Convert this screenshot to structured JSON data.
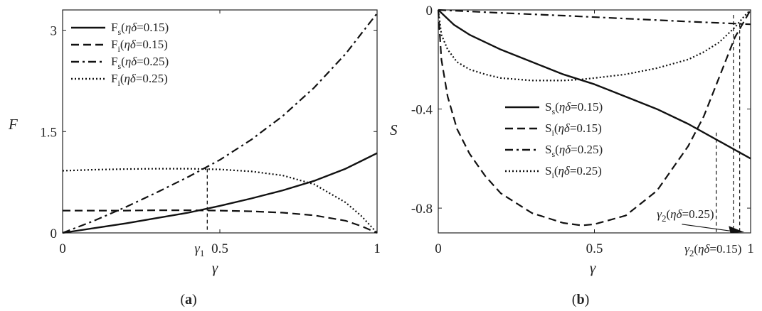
{
  "chart_data": [
    {
      "type": "line",
      "panel_label": "(a)",
      "panel_letter": "a",
      "xlabel": "γ",
      "ylabel": "F",
      "xlim": [
        0,
        1
      ],
      "ylim": [
        0,
        3.3
      ],
      "xticks": [
        0,
        0.5,
        1
      ],
      "xtick_labels": [
        "0",
        "0.5",
        "1"
      ],
      "yticks": [
        0,
        1.5,
        3
      ],
      "ytick_labels": [
        "0",
        "1.5",
        "3"
      ],
      "legend_position": "top-left",
      "annotations": [
        {
          "text": "γ1",
          "x": 0.46,
          "y": 0.95,
          "kind": "vertical-dashed-drop"
        }
      ],
      "series": [
        {
          "name": "Fs(ηδ=0.15)",
          "style": "solid",
          "x": [
            0,
            0.1,
            0.2,
            0.3,
            0.4,
            0.5,
            0.6,
            0.7,
            0.8,
            0.9,
            1.0
          ],
          "y": [
            0,
            0.07,
            0.14,
            0.22,
            0.3,
            0.4,
            0.51,
            0.63,
            0.77,
            0.95,
            1.18
          ]
        },
        {
          "name": "Fi(ηδ=0.15)",
          "style": "dashed",
          "x": [
            0,
            0.1,
            0.2,
            0.3,
            0.4,
            0.5,
            0.6,
            0.7,
            0.8,
            0.9,
            0.95,
            1.0
          ],
          "y": [
            0.33,
            0.33,
            0.33,
            0.335,
            0.335,
            0.33,
            0.32,
            0.3,
            0.26,
            0.18,
            0.1,
            0
          ]
        },
        {
          "name": "Fs(ηδ=0.25)",
          "style": "dashdot",
          "x": [
            0,
            0.1,
            0.2,
            0.3,
            0.4,
            0.5,
            0.6,
            0.7,
            0.8,
            0.9,
            1.0
          ],
          "y": [
            0,
            0.18,
            0.38,
            0.6,
            0.83,
            1.08,
            1.38,
            1.73,
            2.15,
            2.65,
            3.25
          ]
        },
        {
          "name": "Fi(ηδ=0.25)",
          "style": "dotted",
          "x": [
            0,
            0.1,
            0.2,
            0.3,
            0.4,
            0.5,
            0.6,
            0.7,
            0.8,
            0.9,
            0.95,
            1.0
          ],
          "y": [
            0.92,
            0.935,
            0.945,
            0.95,
            0.95,
            0.94,
            0.91,
            0.85,
            0.72,
            0.45,
            0.25,
            0
          ]
        }
      ]
    },
    {
      "type": "line",
      "panel_label": "(b)",
      "panel_letter": "b",
      "xlabel": "γ",
      "ylabel": "S",
      "xlim": [
        0,
        1
      ],
      "ylim": [
        -0.9,
        0
      ],
      "xticks": [
        0,
        0.5,
        1
      ],
      "xtick_labels": [
        "0",
        "0.5",
        "1"
      ],
      "yticks": [
        0,
        -0.4,
        -0.8
      ],
      "ytick_labels": [
        "0",
        "-0.4",
        "-0.8"
      ],
      "legend_position": "center",
      "annotations": [
        {
          "text": "γ2(ηδ=0.25)",
          "x": 0.97,
          "y": -0.9,
          "kind": "arrow-label"
        },
        {
          "text": "γ2(ηδ=0.15)",
          "x": 0.88,
          "y": -0.9,
          "kind": "axis-label"
        }
      ],
      "series": [
        {
          "name": "Ss(ηδ=0.15)",
          "style": "solid",
          "x": [
            0,
            0.05,
            0.1,
            0.2,
            0.3,
            0.4,
            0.5,
            0.6,
            0.7,
            0.8,
            0.9,
            1.0
          ],
          "y": [
            0,
            -0.06,
            -0.1,
            -0.16,
            -0.21,
            -0.26,
            -0.3,
            -0.35,
            -0.4,
            -0.46,
            -0.53,
            -0.6
          ]
        },
        {
          "name": "Si(ηδ=0.15)",
          "style": "dashed",
          "x": [
            0,
            0.01,
            0.03,
            0.06,
            0.1,
            0.15,
            0.2,
            0.3,
            0.4,
            0.46,
            0.5,
            0.6,
            0.7,
            0.8,
            0.85,
            0.9,
            0.95,
            1.0
          ],
          "y": [
            0,
            -0.2,
            -0.35,
            -0.48,
            -0.58,
            -0.67,
            -0.74,
            -0.82,
            -0.86,
            -0.87,
            -0.865,
            -0.83,
            -0.73,
            -0.55,
            -0.43,
            -0.27,
            -0.11,
            0
          ]
        },
        {
          "name": "Ss(ηδ=0.25)",
          "style": "dashdot",
          "x": [
            0,
            0.2,
            0.4,
            0.6,
            0.8,
            1.0
          ],
          "y": [
            0,
            -0.012,
            -0.023,
            -0.035,
            -0.047,
            -0.058
          ]
        },
        {
          "name": "Si(ηδ=0.25)",
          "style": "dotted",
          "x": [
            0,
            0.01,
            0.03,
            0.06,
            0.1,
            0.15,
            0.2,
            0.3,
            0.4,
            0.46,
            0.5,
            0.6,
            0.7,
            0.8,
            0.85,
            0.9,
            0.95,
            0.98,
            1.0
          ],
          "y": [
            0,
            -0.1,
            -0.16,
            -0.21,
            -0.24,
            -0.26,
            -0.275,
            -0.285,
            -0.285,
            -0.28,
            -0.275,
            -0.26,
            -0.235,
            -0.2,
            -0.17,
            -0.13,
            -0.07,
            -0.025,
            0
          ]
        }
      ]
    }
  ]
}
